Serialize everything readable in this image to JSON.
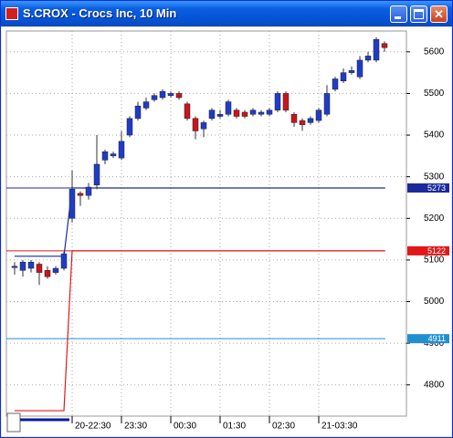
{
  "window_title": "S.CROX - Crocs Inc, 10 Min",
  "chart_data": {
    "type": "candlestick",
    "up_color": "#1f3cc8",
    "down_color": "#c8141e",
    "open": [
      5083,
      5075,
      5080,
      5090,
      5075,
      5070,
      5080,
      5200,
      5260,
      5255,
      5280,
      5340,
      5350,
      5345,
      5400,
      5440,
      5465,
      5485,
      5490,
      5495,
      5500,
      5475,
      5440,
      5415,
      5440,
      5445,
      5450,
      5460,
      5455,
      5450,
      5450,
      5450,
      5460,
      5500,
      5450,
      5435,
      5430,
      5435,
      5450,
      5510,
      5530,
      5550,
      5540,
      5580,
      5580,
      5620
    ],
    "high": [
      5095,
      5100,
      5100,
      5095,
      5085,
      5085,
      5120,
      5315,
      5265,
      5285,
      5400,
      5365,
      5360,
      5410,
      5445,
      5480,
      5490,
      5500,
      5510,
      5505,
      5505,
      5480,
      5445,
      5435,
      5465,
      5460,
      5485,
      5465,
      5460,
      5465,
      5460,
      5465,
      5505,
      5505,
      5455,
      5440,
      5445,
      5465,
      5520,
      5540,
      5560,
      5565,
      5590,
      5600,
      5635,
      5625
    ],
    "low": [
      5065,
      5060,
      5070,
      5040,
      5055,
      5065,
      5075,
      5190,
      5230,
      5245,
      5270,
      5330,
      5345,
      5340,
      5395,
      5435,
      5460,
      5480,
      5485,
      5490,
      5485,
      5435,
      5390,
      5395,
      5435,
      5440,
      5445,
      5440,
      5440,
      5445,
      5445,
      5445,
      5455,
      5455,
      5420,
      5410,
      5425,
      5430,
      5445,
      5505,
      5525,
      5545,
      5535,
      5575,
      5575,
      5600
    ],
    "close": [
      5085,
      5095,
      5095,
      5070,
      5060,
      5080,
      5115,
      5270,
      5255,
      5275,
      5330,
      5360,
      5355,
      5385,
      5440,
      5470,
      5480,
      5495,
      5505,
      5500,
      5490,
      5440,
      5410,
      5430,
      5460,
      5450,
      5480,
      5445,
      5445,
      5460,
      5455,
      5460,
      5500,
      5460,
      5430,
      5425,
      5440,
      5460,
      5500,
      5535,
      5550,
      5555,
      5580,
      5590,
      5630,
      5610
    ],
    "lines": [
      {
        "color": "#1c2a9c",
        "values": [
          5109,
          5109,
          5109,
          5109,
          5109,
          5109,
          5109,
          5273,
          5273,
          5273,
          5273,
          5273,
          5273,
          5273,
          5273,
          5273,
          5273,
          5273,
          5273,
          5273,
          5273,
          5273,
          5273,
          5273,
          5273,
          5273,
          5273,
          5273,
          5273,
          5273,
          5273,
          5273,
          5273,
          5273,
          5273,
          5273,
          5273,
          5273,
          5273,
          5273,
          5273,
          5273,
          5273,
          5273,
          5273,
          5273
        ]
      },
      {
        "color": "#e01818",
        "values": [
          4738,
          4738,
          4738,
          4738,
          4738,
          4738,
          4738,
          5122,
          5122,
          5122,
          5122,
          5122,
          5122,
          5122,
          5122,
          5122,
          5122,
          5122,
          5122,
          5122,
          5122,
          5122,
          5122,
          5122,
          5122,
          5122,
          5122,
          5122,
          5122,
          5122,
          5122,
          5122,
          5122,
          5122,
          5122,
          5122,
          5122,
          5122,
          5122,
          5122,
          5122,
          5122,
          5122,
          5122,
          5122,
          5122
        ]
      }
    ],
    "levels": [
      {
        "value": 5273,
        "color": "#1c2a9c"
      },
      {
        "value": 5122,
        "color": "#e01818"
      },
      {
        "value": 4911,
        "color": "#2090d0"
      }
    ],
    "ylim": [
      4725,
      5650
    ],
    "yticks": [
      4800,
      4900,
      5000,
      5100,
      5200,
      5300,
      5400,
      5500,
      5600
    ],
    "xticks": [
      {
        "value": 7,
        "label": "20-22:30"
      },
      {
        "value": 13,
        "label": "23:30"
      },
      {
        "value": 19,
        "label": "00:30"
      },
      {
        "value": 25,
        "label": "01:30"
      },
      {
        "value": 31,
        "label": "02:30"
      },
      {
        "value": 37,
        "label": "21-03:30"
      }
    ],
    "grid": true
  }
}
